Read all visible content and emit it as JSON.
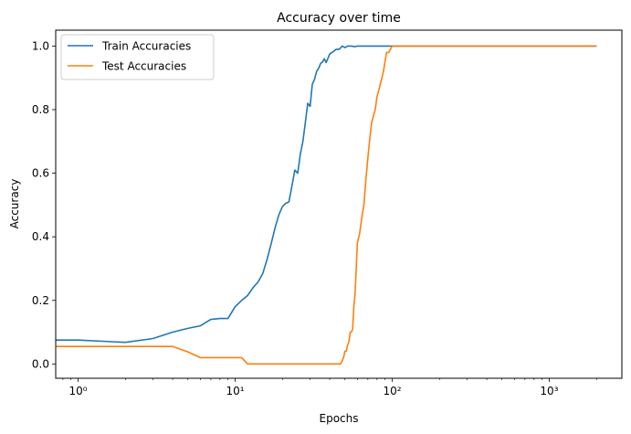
{
  "chart_data": {
    "type": "line",
    "title": "Accuracy over time",
    "xlabel": "Epochs",
    "ylabel": "Accuracy",
    "xscale": "log",
    "xlim": [
      0.72,
      2900
    ],
    "ylim": [
      -0.045,
      1.05
    ],
    "x_ticks": [
      1,
      10,
      100,
      1000
    ],
    "x_tick_labels": [
      "10⁰",
      "10¹",
      "10²",
      "10³"
    ],
    "y_ticks": [
      0.0,
      0.2,
      0.4,
      0.6,
      0.8,
      1.0
    ],
    "y_tick_labels": [
      "0.0",
      "0.2",
      "0.4",
      "0.6",
      "0.8",
      "1.0"
    ],
    "grid": false,
    "legend": "top-left",
    "series": [
      {
        "name": "Train Accuracies",
        "color": "#1f77b4",
        "x": [
          0.72,
          1,
          2,
          3,
          4,
          5,
          6,
          7,
          8,
          9,
          10,
          11,
          12,
          13,
          14,
          15,
          16,
          17,
          18,
          19,
          20,
          21,
          22,
          23,
          24,
          25,
          26,
          27,
          28,
          29,
          30,
          31,
          32,
          33,
          34,
          35,
          36,
          37,
          38,
          40,
          42,
          44,
          46,
          48,
          50,
          52,
          55,
          58,
          60,
          65,
          70,
          80,
          90,
          100,
          150,
          300,
          1000,
          2000
        ],
        "y": [
          0.075,
          0.075,
          0.068,
          0.08,
          0.1,
          0.112,
          0.12,
          0.14,
          0.143,
          0.143,
          0.18,
          0.2,
          0.215,
          0.24,
          0.258,
          0.285,
          0.33,
          0.38,
          0.43,
          0.47,
          0.495,
          0.505,
          0.51,
          0.56,
          0.61,
          0.6,
          0.66,
          0.7,
          0.76,
          0.82,
          0.81,
          0.88,
          0.895,
          0.92,
          0.93,
          0.945,
          0.95,
          0.96,
          0.948,
          0.975,
          0.982,
          0.99,
          0.99,
          1.0,
          0.995,
          1.0,
          1.0,
          0.998,
          1.0,
          1.0,
          1.0,
          1.0,
          1.0,
          1.0,
          1.0,
          1.0,
          1.0,
          1.0
        ]
      },
      {
        "name": "Test Accuracies",
        "color": "#ff7f0e",
        "x": [
          0.72,
          1,
          2,
          3,
          4,
          5,
          6,
          7,
          8,
          9,
          10,
          11,
          12,
          13,
          20,
          30,
          40,
          47,
          48,
          49,
          50,
          51,
          52,
          53,
          54,
          55,
          56,
          57,
          58,
          59,
          60,
          62,
          64,
          66,
          68,
          70,
          72,
          74,
          76,
          78,
          80,
          82,
          84,
          86,
          88,
          90,
          92,
          95,
          100,
          110,
          300,
          1000,
          2000
        ],
        "y": [
          0.055,
          0.055,
          0.055,
          0.055,
          0.055,
          0.038,
          0.02,
          0.02,
          0.02,
          0.02,
          0.02,
          0.02,
          0.0,
          0.0,
          0.0,
          0.0,
          0.0,
          0.0,
          0.01,
          0.02,
          0.04,
          0.04,
          0.06,
          0.07,
          0.1,
          0.1,
          0.11,
          0.18,
          0.22,
          0.3,
          0.38,
          0.41,
          0.46,
          0.5,
          0.58,
          0.65,
          0.71,
          0.76,
          0.78,
          0.8,
          0.84,
          0.86,
          0.88,
          0.9,
          0.92,
          0.95,
          0.98,
          0.98,
          1.0,
          1.0,
          1.0,
          1.0,
          1.0
        ]
      }
    ]
  }
}
